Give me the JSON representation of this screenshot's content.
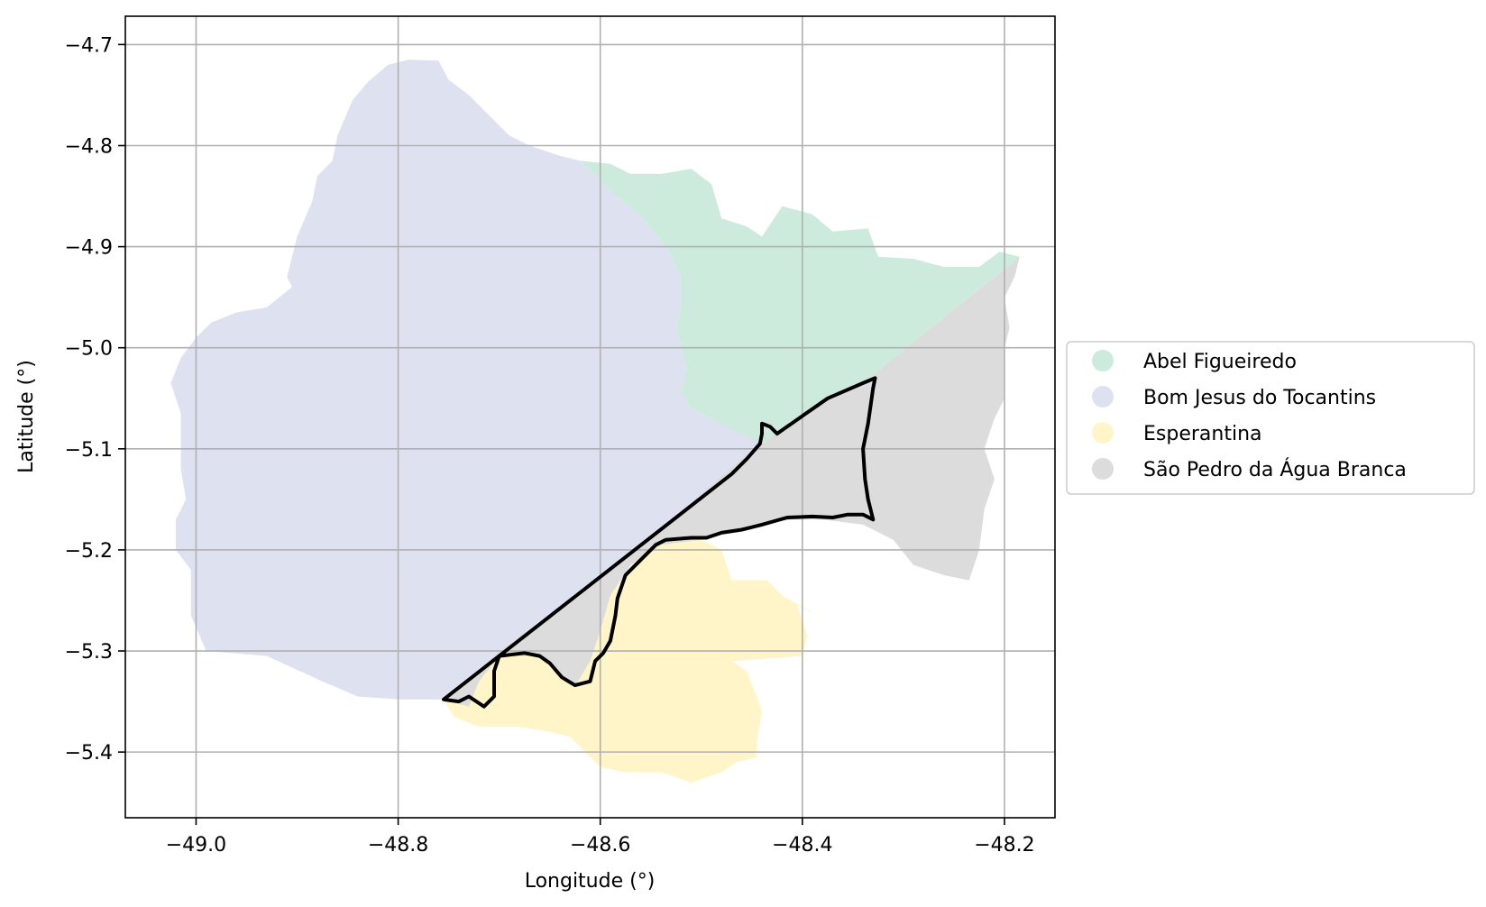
{
  "map": {
    "xlabel": "Longitude (°)",
    "ylabel": "Latitude (°)",
    "xlim": [
      -49.07,
      -48.15
    ],
    "ylim": [
      -5.465,
      -4.672
    ],
    "x_ticks": [
      -49.0,
      -48.8,
      -48.6,
      -48.4,
      -48.2
    ],
    "x_tick_labels": [
      "−49.0",
      "−48.8",
      "−48.6",
      "−48.4",
      "−48.2"
    ],
    "y_ticks": [
      -4.7,
      -4.8,
      -4.9,
      -5.0,
      -5.1,
      -5.2,
      -5.3,
      -5.4
    ],
    "y_tick_labels": [
      "−4.7",
      "−4.8",
      "−4.9",
      "−5.0",
      "−5.1",
      "−5.2",
      "−5.3",
      "−5.4"
    ],
    "grid": true,
    "legend_placement": "center-right outside",
    "regions": [
      {
        "name": "Abel Figueiredo",
        "color": "#cdebdc",
        "boundary": [
          [
            -48.62,
            -4.815
          ],
          [
            -48.59,
            -4.818
          ],
          [
            -48.57,
            -4.828
          ],
          [
            -48.54,
            -4.828
          ],
          [
            -48.51,
            -4.823
          ],
          [
            -48.49,
            -4.838
          ],
          [
            -48.48,
            -4.872
          ],
          [
            -48.455,
            -4.88
          ],
          [
            -48.44,
            -4.89
          ],
          [
            -48.42,
            -4.86
          ],
          [
            -48.39,
            -4.868
          ],
          [
            -48.37,
            -4.885
          ],
          [
            -48.335,
            -4.882
          ],
          [
            -48.325,
            -4.91
          ],
          [
            -48.29,
            -4.912
          ],
          [
            -48.26,
            -4.92
          ],
          [
            -48.225,
            -4.92
          ],
          [
            -48.205,
            -4.905
          ],
          [
            -48.185,
            -4.91
          ],
          [
            -48.26,
            -4.97
          ],
          [
            -48.34,
            -5.035
          ],
          [
            -48.39,
            -5.06
          ],
          [
            -48.44,
            -5.095
          ],
          [
            -48.455,
            -5.105
          ],
          [
            -48.475,
            -5.09
          ],
          [
            -48.49,
            -5.07
          ],
          [
            -48.51,
            -5.06
          ],
          [
            -48.52,
            -5.045
          ],
          [
            -48.515,
            -5.02
          ],
          [
            -48.52,
            -5.0
          ],
          [
            -48.525,
            -4.98
          ],
          [
            -48.52,
            -4.96
          ],
          [
            -48.52,
            -4.93
          ],
          [
            -48.535,
            -4.9
          ],
          [
            -48.56,
            -4.87
          ],
          [
            -48.59,
            -4.845
          ]
        ]
      },
      {
        "name": "Bom Jesus do Tocantins",
        "color": "#dee2f0",
        "boundary": [
          [
            -48.76,
            -4.716
          ],
          [
            -48.79,
            -4.715
          ],
          [
            -48.81,
            -4.72
          ],
          [
            -48.83,
            -4.737
          ],
          [
            -48.845,
            -4.755
          ],
          [
            -48.86,
            -4.79
          ],
          [
            -48.865,
            -4.815
          ],
          [
            -48.88,
            -4.83
          ],
          [
            -48.885,
            -4.855
          ],
          [
            -48.9,
            -4.89
          ],
          [
            -48.91,
            -4.93
          ],
          [
            -48.905,
            -4.94
          ],
          [
            -48.93,
            -4.96
          ],
          [
            -48.96,
            -4.965
          ],
          [
            -48.985,
            -4.975
          ],
          [
            -49.0,
            -4.99
          ],
          [
            -49.015,
            -5.01
          ],
          [
            -49.025,
            -5.035
          ],
          [
            -49.015,
            -5.065
          ],
          [
            -49.015,
            -5.12
          ],
          [
            -49.01,
            -5.15
          ],
          [
            -49.02,
            -5.17
          ],
          [
            -49.02,
            -5.2
          ],
          [
            -49.005,
            -5.22
          ],
          [
            -49.005,
            -5.265
          ],
          [
            -48.99,
            -5.3
          ],
          [
            -48.93,
            -5.305
          ],
          [
            -48.875,
            -5.33
          ],
          [
            -48.84,
            -5.345
          ],
          [
            -48.8,
            -5.348
          ],
          [
            -48.755,
            -5.348
          ],
          [
            -48.7,
            -5.3
          ],
          [
            -48.645,
            -5.26
          ],
          [
            -48.6,
            -5.225
          ],
          [
            -48.53,
            -5.17
          ],
          [
            -48.455,
            -5.105
          ],
          [
            -48.44,
            -5.095
          ],
          [
            -48.49,
            -5.07
          ],
          [
            -48.51,
            -5.06
          ],
          [
            -48.52,
            -5.045
          ],
          [
            -48.515,
            -5.02
          ],
          [
            -48.52,
            -5.0
          ],
          [
            -48.525,
            -4.98
          ],
          [
            -48.52,
            -4.96
          ],
          [
            -48.52,
            -4.93
          ],
          [
            -48.535,
            -4.9
          ],
          [
            -48.56,
            -4.87
          ],
          [
            -48.59,
            -4.845
          ],
          [
            -48.62,
            -4.815
          ],
          [
            -48.64,
            -4.81
          ],
          [
            -48.67,
            -4.8
          ],
          [
            -48.69,
            -4.79
          ],
          [
            -48.71,
            -4.77
          ],
          [
            -48.73,
            -4.75
          ],
          [
            -48.75,
            -4.735
          ]
        ]
      },
      {
        "name": "Esperantina",
        "color": "#fff5c9",
        "boundary": [
          [
            -48.755,
            -5.348
          ],
          [
            -48.745,
            -5.365
          ],
          [
            -48.72,
            -5.375
          ],
          [
            -48.68,
            -5.375
          ],
          [
            -48.65,
            -5.38
          ],
          [
            -48.63,
            -5.385
          ],
          [
            -48.615,
            -5.4
          ],
          [
            -48.6,
            -5.415
          ],
          [
            -48.575,
            -5.42
          ],
          [
            -48.54,
            -5.42
          ],
          [
            -48.51,
            -5.43
          ],
          [
            -48.48,
            -5.42
          ],
          [
            -48.465,
            -5.41
          ],
          [
            -48.445,
            -5.405
          ],
          [
            -48.445,
            -5.39
          ],
          [
            -48.44,
            -5.36
          ],
          [
            -48.445,
            -5.345
          ],
          [
            -48.455,
            -5.32
          ],
          [
            -48.47,
            -5.31
          ],
          [
            -48.4,
            -5.305
          ],
          [
            -48.395,
            -5.285
          ],
          [
            -48.405,
            -5.255
          ],
          [
            -48.385,
            -5.265
          ],
          [
            -48.42,
            -5.245
          ],
          [
            -48.435,
            -5.23
          ],
          [
            -48.47,
            -5.23
          ],
          [
            -48.48,
            -5.2
          ],
          [
            -48.5,
            -5.19
          ],
          [
            -48.53,
            -5.17
          ],
          [
            -48.6,
            -5.225
          ],
          [
            -48.645,
            -5.26
          ],
          [
            -48.7,
            -5.3
          ]
        ]
      },
      {
        "name": "São Pedro da Água Branca",
        "color": "#dcdcdc",
        "boundary": [
          [
            -48.755,
            -5.348
          ],
          [
            -48.7,
            -5.3
          ],
          [
            -48.645,
            -5.26
          ],
          [
            -48.6,
            -5.225
          ],
          [
            -48.53,
            -5.17
          ],
          [
            -48.455,
            -5.105
          ],
          [
            -48.44,
            -5.095
          ],
          [
            -48.39,
            -5.06
          ],
          [
            -48.34,
            -5.035
          ],
          [
            -48.26,
            -4.97
          ],
          [
            -48.185,
            -4.91
          ],
          [
            -48.19,
            -4.93
          ],
          [
            -48.2,
            -4.95
          ],
          [
            -48.195,
            -4.98
          ],
          [
            -48.2,
            -5.0
          ],
          [
            -48.2,
            -5.05
          ],
          [
            -48.21,
            -5.07
          ],
          [
            -48.22,
            -5.1
          ],
          [
            -48.21,
            -5.13
          ],
          [
            -48.22,
            -5.16
          ],
          [
            -48.225,
            -5.2
          ],
          [
            -48.235,
            -5.23
          ],
          [
            -48.26,
            -5.225
          ],
          [
            -48.29,
            -5.215
          ],
          [
            -48.31,
            -5.19
          ],
          [
            -48.34,
            -5.175
          ],
          [
            -48.38,
            -5.17
          ],
          [
            -48.41,
            -5.17
          ],
          [
            -48.45,
            -5.175
          ],
          [
            -48.5,
            -5.19
          ],
          [
            -48.54,
            -5.195
          ],
          [
            -48.57,
            -5.215
          ],
          [
            -48.59,
            -5.245
          ],
          [
            -48.6,
            -5.28
          ],
          [
            -48.61,
            -5.31
          ],
          [
            -48.625,
            -5.335
          ],
          [
            -48.66,
            -5.305
          ],
          [
            -48.7,
            -5.305
          ],
          [
            -48.72,
            -5.33
          ],
          [
            -48.73,
            -5.355
          ]
        ]
      }
    ],
    "highlight": {
      "name": "highlighted-boundary",
      "color": "#000000",
      "boundary": [
        [
          -48.755,
          -5.348
        ],
        [
          -48.74,
          -5.35
        ],
        [
          -48.73,
          -5.345
        ],
        [
          -48.715,
          -5.355
        ],
        [
          -48.705,
          -5.345
        ],
        [
          -48.705,
          -5.32
        ],
        [
          -48.7,
          -5.305
        ],
        [
          -48.675,
          -5.302
        ],
        [
          -48.66,
          -5.305
        ],
        [
          -48.65,
          -5.312
        ],
        [
          -48.638,
          -5.326
        ],
        [
          -48.625,
          -5.334
        ],
        [
          -48.61,
          -5.33
        ],
        [
          -48.605,
          -5.31
        ],
        [
          -48.597,
          -5.302
        ],
        [
          -48.59,
          -5.29
        ],
        [
          -48.585,
          -5.265
        ],
        [
          -48.583,
          -5.248
        ],
        [
          -48.575,
          -5.225
        ],
        [
          -48.56,
          -5.21
        ],
        [
          -48.545,
          -5.195
        ],
        [
          -48.535,
          -5.19
        ],
        [
          -48.51,
          -5.188
        ],
        [
          -48.495,
          -5.188
        ],
        [
          -48.48,
          -5.183
        ],
        [
          -48.46,
          -5.18
        ],
        [
          -48.44,
          -5.175
        ],
        [
          -48.415,
          -5.168
        ],
        [
          -48.39,
          -5.167
        ],
        [
          -48.37,
          -5.168
        ],
        [
          -48.355,
          -5.165
        ],
        [
          -48.34,
          -5.165
        ],
        [
          -48.33,
          -5.17
        ],
        [
          -48.335,
          -5.15
        ],
        [
          -48.338,
          -5.13
        ],
        [
          -48.34,
          -5.1
        ],
        [
          -48.335,
          -5.075
        ],
        [
          -48.33,
          -5.04
        ],
        [
          -48.328,
          -5.03
        ],
        [
          -48.34,
          -5.035
        ],
        [
          -48.375,
          -5.05
        ],
        [
          -48.425,
          -5.085
        ],
        [
          -48.432,
          -5.078
        ],
        [
          -48.44,
          -5.075
        ],
        [
          -48.44,
          -5.085
        ],
        [
          -48.442,
          -5.095
        ],
        [
          -48.455,
          -5.11
        ],
        [
          -48.47,
          -5.125
        ],
        [
          -48.755,
          -5.348
        ]
      ]
    }
  }
}
